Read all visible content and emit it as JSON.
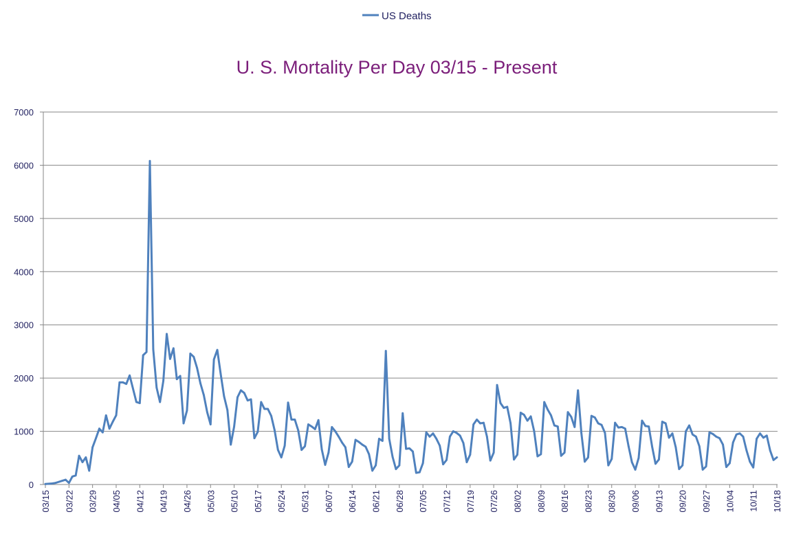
{
  "chart_data": {
    "type": "line",
    "title": "U. S. Mortality Per Day 03/15 - Present",
    "xlabel": "",
    "ylabel": "",
    "ylim": [
      0,
      7000
    ],
    "yticks": [
      0,
      1000,
      2000,
      3000,
      4000,
      5000,
      6000,
      7000
    ],
    "grid": true,
    "legend_position": "top",
    "colors": {
      "series": "#4F81BD",
      "title": "#7B1E7A",
      "axis_text": "#1F1F5F",
      "grid": "#868686"
    },
    "xtick_labels": [
      "03/15",
      "03/22",
      "03/29",
      "04/05",
      "04/12",
      "04/19",
      "04/26",
      "05/03",
      "05/10",
      "05/17",
      "05/24",
      "05/31",
      "06/07",
      "06/14",
      "06/21",
      "06/28",
      "07/05",
      "07/12",
      "07/19",
      "07/26",
      "08/02",
      "08/09",
      "08/16",
      "08/23",
      "08/30",
      "09/06",
      "09/13",
      "09/20",
      "09/27",
      "10/04",
      "10/11",
      "10/18"
    ],
    "xtick_every": 7,
    "series": [
      {
        "name": "US Deaths",
        "values": [
          10,
          15,
          20,
          30,
          50,
          70,
          90,
          30,
          150,
          170,
          540,
          420,
          510,
          260,
          700,
          870,
          1050,
          980,
          1300,
          1050,
          1180,
          1300,
          1920,
          1920,
          1890,
          2050,
          1800,
          1550,
          1530,
          2430,
          2490,
          6080,
          2540,
          1820,
          1550,
          1950,
          2830,
          2360,
          2560,
          1980,
          2040,
          1150,
          1390,
          2460,
          2400,
          2190,
          1900,
          1680,
          1360,
          1130,
          2350,
          2530,
          2080,
          1660,
          1400,
          750,
          1090,
          1640,
          1770,
          1720,
          1580,
          1600,
          870,
          990,
          1550,
          1420,
          1420,
          1290,
          1020,
          650,
          510,
          730,
          1540,
          1220,
          1220,
          1020,
          650,
          720,
          1130,
          1090,
          1040,
          1210,
          660,
          370,
          600,
          1080,
          1000,
          900,
          790,
          700,
          330,
          430,
          840,
          800,
          750,
          710,
          570,
          260,
          360,
          860,
          820,
          2510,
          860,
          520,
          290,
          360,
          1340,
          670,
          680,
          620,
          220,
          230,
          400,
          980,
          900,
          960,
          860,
          730,
          380,
          460,
          900,
          1000,
          970,
          920,
          780,
          420,
          560,
          1130,
          1220,
          1150,
          1160,
          900,
          450,
          600,
          1870,
          1530,
          1440,
          1460,
          1150,
          470,
          560,
          1350,
          1310,
          1200,
          1280,
          1000,
          530,
          570,
          1550,
          1410,
          1300,
          1110,
          1090,
          540,
          600,
          1360,
          1270,
          1080,
          1770,
          970,
          430,
          510,
          1290,
          1260,
          1150,
          1120,
          970,
          360,
          480,
          1160,
          1070,
          1080,
          1050,
          720,
          420,
          280,
          500,
          1200,
          1100,
          1090,
          710,
          390,
          470,
          1180,
          1150,
          880,
          960,
          700,
          290,
          360,
          1000,
          1110,
          940,
          900,
          720,
          280,
          340,
          980,
          950,
          900,
          870,
          750,
          330,
          400,
          790,
          940,
          960,
          900,
          640,
          430,
          320,
          860,
          960,
          880,
          920,
          640,
          460,
          510
        ]
      }
    ]
  }
}
